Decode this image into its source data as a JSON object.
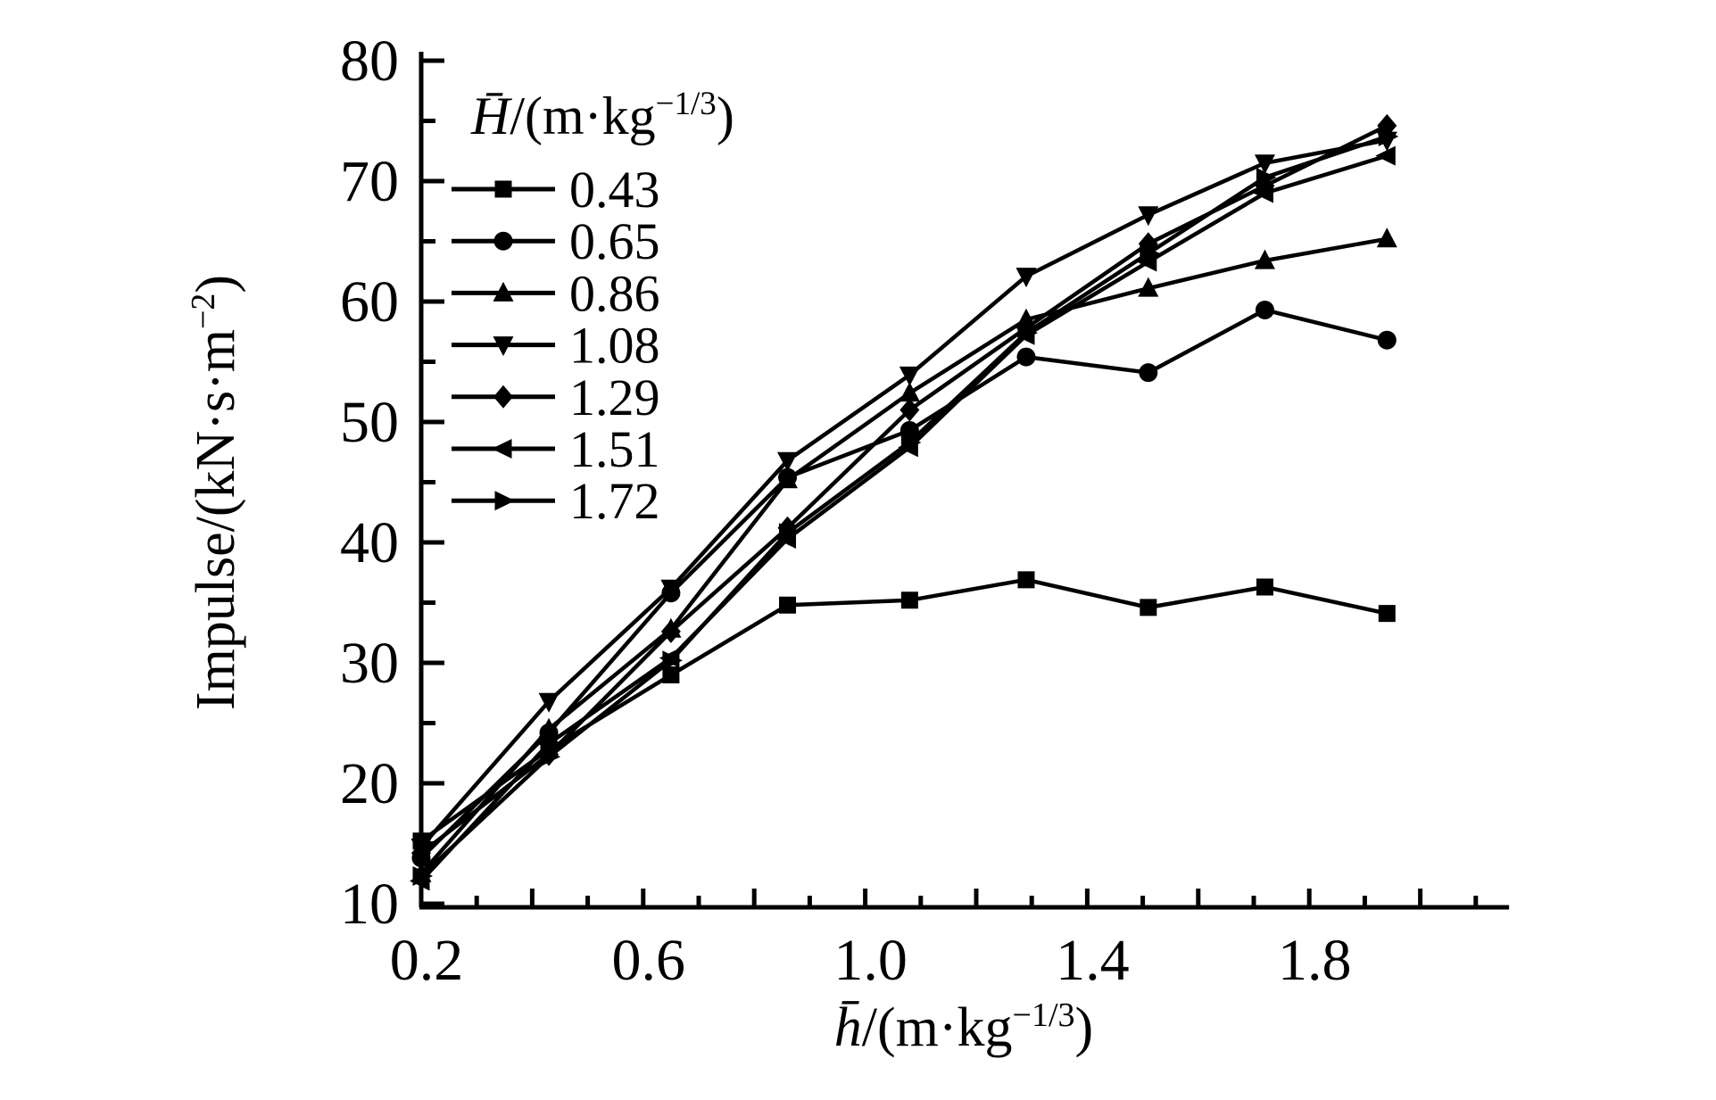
{
  "figure": {
    "background_color": "#ffffff",
    "ink_color": "#000000"
  },
  "chart_data": {
    "type": "line",
    "title": "",
    "xlabel": "h̄/(m·kg^{−1/3})",
    "ylabel": "Impulse/(kN·s·m^{−2})",
    "legend_title": "H̄/(m·kg^{−1/3})",
    "legend_position": "upper-left-inside",
    "grid": false,
    "xlim": [
      0.2,
      2.16
    ],
    "ylim": [
      10,
      80
    ],
    "x_tick_labels": [
      "0.2",
      "0.6",
      "1.0",
      "1.4",
      "1.8"
    ],
    "x_tick_label_values": [
      0.2,
      0.6,
      1.0,
      1.4,
      1.8
    ],
    "x_medium_tick_step": 0.2,
    "x_minor_tick_step": 0.1,
    "y_tick_labels": [
      "10",
      "20",
      "30",
      "40",
      "50",
      "60",
      "70",
      "80"
    ],
    "y_major_tick_step": 10,
    "y_minor_tick_step": 5,
    "x": [
      0.2,
      0.43,
      0.65,
      0.86,
      1.08,
      1.29,
      1.51,
      1.72,
      1.94
    ],
    "series": [
      {
        "name": "0.43",
        "marker": "square",
        "values": [
          15.2,
          22.8,
          29.0,
          34.8,
          35.2,
          36.9,
          34.6,
          36.3,
          34.1
        ]
      },
      {
        "name": "0.65",
        "marker": "circle",
        "values": [
          13.8,
          24.2,
          35.8,
          45.4,
          49.3,
          55.4,
          54.1,
          59.3,
          56.8
        ]
      },
      {
        "name": "0.86",
        "marker": "triangle-up",
        "values": [
          12.5,
          24.5,
          32.8,
          45.2,
          52.4,
          58.5,
          61.1,
          63.4,
          65.2
        ]
      },
      {
        "name": "1.08",
        "marker": "triangle-down",
        "values": [
          14.7,
          26.8,
          36.2,
          46.8,
          53.9,
          62.1,
          67.2,
          71.5,
          73.4
        ]
      },
      {
        "name": "1.29",
        "marker": "diamond",
        "values": [
          14.2,
          22.4,
          32.6,
          41.2,
          51.0,
          57.8,
          64.8,
          69.6,
          74.6
        ]
      },
      {
        "name": "1.51",
        "marker": "triangle-left",
        "values": [
          11.9,
          23.3,
          30.4,
          40.3,
          47.9,
          57.2,
          63.3,
          69.0,
          72.1
        ]
      },
      {
        "name": "1.72",
        "marker": "triangle-right",
        "values": [
          12.3,
          22.2,
          30.2,
          40.8,
          48.3,
          57.4,
          64.0,
          70.3,
          73.7
        ]
      }
    ]
  }
}
